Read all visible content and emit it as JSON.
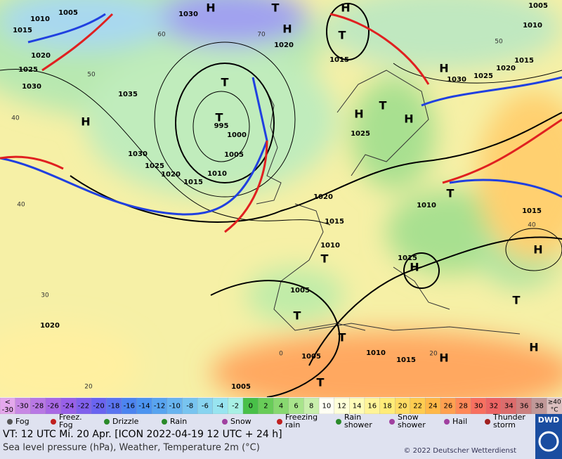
{
  "map": {
    "isobar_labels": [
      "1005",
      "1010",
      "1015",
      "1020",
      "1025",
      "1030",
      "1030",
      "1020",
      "1015",
      "1005",
      "1010",
      "1015",
      "1020",
      "1025",
      "1030",
      "1035",
      "995",
      "1000",
      "1005",
      "1010",
      "1015",
      "1020",
      "1025",
      "1030",
      "1025",
      "1020",
      "1015",
      "1010",
      "1010",
      "1015",
      "1015",
      "1005",
      "1020",
      "1005",
      "1010",
      "1015",
      "1005"
    ],
    "temperature_labels": [
      "60",
      "70",
      "50",
      "50",
      "40",
      "40",
      "40",
      "30",
      "20",
      "20",
      "0"
    ],
    "pressure_centers": [
      "H",
      "T",
      "H",
      "T",
      "H",
      "H",
      "T",
      "T",
      "H",
      "H",
      "T",
      "H",
      "T",
      "T",
      "H",
      "H",
      "T",
      "T",
      "T",
      "H",
      "H",
      "T"
    ]
  },
  "temperature_scale": {
    "below_label": [
      "<",
      "-30"
    ],
    "steps": [
      "-30",
      "-28",
      "-26",
      "-24",
      "-22",
      "-20",
      "-18",
      "-16",
      "-14",
      "-12",
      "-10",
      "-8",
      "-6",
      "-4",
      "-2",
      "0",
      "2",
      "4",
      "6",
      "8",
      "10",
      "12",
      "14",
      "16",
      "18",
      "20",
      "22",
      "24",
      "26",
      "28",
      "30",
      "32",
      "34",
      "36",
      "38"
    ],
    "above_label": [
      "≥40",
      "°C"
    ],
    "colors": [
      "#e4a8ec",
      "#c888e4",
      "#b878e4",
      "#a868e4",
      "#9860e8",
      "#8060ec",
      "#6a64f0",
      "#5a74f0",
      "#4c84f0",
      "#4c94f0",
      "#58a4f0",
      "#68b4f0",
      "#78c4f0",
      "#88d4f0",
      "#98e4f0",
      "#a8f0e4",
      "#48c048",
      "#68cc58",
      "#88d870",
      "#a8e48c",
      "#c8eeac",
      "#fffff4",
      "#ffffd8",
      "#fffcb8",
      "#fff498",
      "#ffec78",
      "#ffdc64",
      "#ffcc50",
      "#ffb848",
      "#ffa050",
      "#ff8858",
      "#f87060",
      "#ec6464",
      "#dc6c6c",
      "#cc8080",
      "#c09898",
      "#dcc0c0"
    ]
  },
  "weather_legend": [
    [
      "Fog"
    ],
    [
      "Freez.",
      "Fog"
    ],
    [
      "Drizzle"
    ],
    [
      "Rain"
    ],
    [
      "Snow"
    ],
    [
      "Freezing",
      "rain"
    ],
    [
      "Rain",
      "shower"
    ],
    [
      "Snow",
      "shower"
    ],
    [
      "Hail"
    ],
    [
      "Thunder",
      "storm"
    ]
  ],
  "footer": {
    "valid_time": "VT: 12 UTC Mi.  20 Apr. [ICON 2022-04-19  12 UTC + 24 h]",
    "description": "Sea level pressure (hPa), Weather, Temperature 2m (°C)",
    "copyright": "© 2022 Deutscher Wetterdienst",
    "logo": "DWD"
  }
}
